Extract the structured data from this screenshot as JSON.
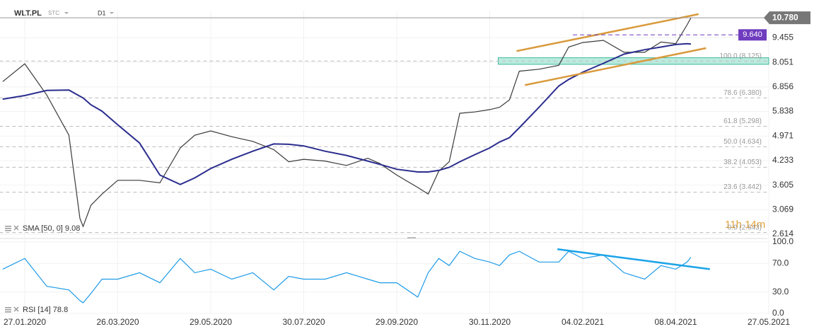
{
  "header": {
    "symbol": "WLT.PL",
    "mode": "STC",
    "interval": "D1",
    "countdown": "11h 14m"
  },
  "chart_data": [
    {
      "type": "line",
      "log": true,
      "grid": true,
      "legend": "SMA [50, 0] 9.08",
      "xlim": [
        "11.01.2020",
        "27.05.2021"
      ],
      "ylim": [
        2.566,
        11.3
      ],
      "yticks": [
        2.614,
        3.069,
        3.605,
        4.233,
        4.971,
        5.838,
        6.856,
        8.051,
        9.455
      ],
      "x": [
        "13.01.2020",
        "27.01.2020",
        "10.02.2020",
        "24.02.2020",
        "02.03.2020",
        "04.03.2020",
        "09.03.2020",
        "16.03.2020",
        "26.03.2020",
        "10.04.2020",
        "24.04.2020",
        "08.05.2020",
        "18.05.2020",
        "29.05.2020",
        "12.06.2020",
        "26.06.2020",
        "10.07.2020",
        "20.07.2020",
        "30.07.2020",
        "13.08.2020",
        "27.08.2020",
        "10.09.2020",
        "18.09.2020",
        "29.09.2020",
        "13.10.2020",
        "20.10.2020",
        "27.10.2020",
        "03.11.2020",
        "10.11.2020",
        "20.11.2020",
        "30.11.2020",
        "07.12.2020",
        "14.12.2020",
        "21.12.2020",
        "04.01.2021",
        "18.01.2021",
        "25.01.2021",
        "04.02.2021",
        "18.02.2021",
        "04.03.2021",
        "18.03.2021",
        "29.03.2021",
        "08.04.2021",
        "14.04.2021",
        "16.04.2021"
      ],
      "series": [
        {
          "color": "#3a3a3a",
          "width": 1.2,
          "values": [
            7.1,
            7.98,
            6.5,
            5.0,
            2.9,
            2.75,
            3.16,
            3.4,
            3.72,
            3.72,
            3.66,
            4.6,
            5.0,
            5.14,
            4.95,
            4.8,
            4.55,
            4.2,
            4.27,
            4.22,
            4.1,
            4.3,
            4.15,
            3.85,
            3.55,
            3.4,
            3.95,
            4.2,
            5.77,
            5.82,
            5.91,
            6.0,
            6.3,
            7.6,
            7.7,
            7.9,
            8.9,
            9.17,
            9.3,
            8.6,
            8.6,
            9.2,
            9.1,
            10.3,
            10.78
          ]
        },
        {
          "color": "#2b2d8e",
          "width": 2,
          "values": [
            6.33,
            6.48,
            6.7,
            6.72,
            6.45,
            6.38,
            6.1,
            5.85,
            5.35,
            4.75,
            3.85,
            3.62,
            3.78,
            4.02,
            4.27,
            4.5,
            4.72,
            4.71,
            4.66,
            4.5,
            4.38,
            4.22,
            4.13,
            4.0,
            3.93,
            3.93,
            3.97,
            4.05,
            4.2,
            4.4,
            4.6,
            4.78,
            4.92,
            5.25,
            6.0,
            6.9,
            7.2,
            7.55,
            8.0,
            8.5,
            8.75,
            8.9,
            9.05,
            9.1,
            9.08
          ]
        }
      ],
      "last": {
        "value": 10.78,
        "label": "10.780",
        "color": "#777777"
      },
      "levels": [
        {
          "value": 9.64,
          "label": "9.640",
          "x": [
            "28.01.2021",
            "11.05.2021"
          ],
          "color": "#6f3cbf"
        }
      ],
      "fib": [
        {
          "value": 8.125,
          "label": "100.0 (8.125)"
        },
        {
          "value": 6.38,
          "label": "78.6 (6.380)"
        },
        {
          "value": 5.298,
          "label": "61.8 (5.298)"
        },
        {
          "value": 4.634,
          "label": "50.0 (4.634)"
        },
        {
          "value": 4.053,
          "label": "38.2 (4.053)"
        },
        {
          "value": 3.442,
          "label": "23.6 (3.442)"
        },
        {
          "value": 2.643,
          "label": "0.0 (2.643)"
        }
      ],
      "zones": [
        {
          "x": "06.12.2020",
          "range": [
            7.95,
            8.3
          ],
          "color": "#8fe0c9"
        }
      ],
      "trendlines": [
        {
          "x": [
            "19.12.2020",
            "20.04.2021"
          ],
          "values": [
            8.67,
            11.04
          ],
          "color": "#d99a3c"
        },
        {
          "x": [
            "25.12.2020",
            "24.04.2021"
          ],
          "values": [
            6.94,
            8.84
          ],
          "color": "#d99a3c"
        }
      ]
    },
    {
      "type": "line",
      "grid": true,
      "legend": "RSI [14] 78.8",
      "xlim": [
        "11.01.2020",
        "27.05.2021"
      ],
      "ylim": [
        0,
        100
      ],
      "yticks": [
        {
          "value": 0,
          "label": "0.0"
        },
        {
          "value": 30,
          "label": "30.0"
        },
        {
          "value": 70,
          "label": "70.0"
        },
        {
          "value": 100,
          "label": "100.0"
        }
      ],
      "xticks": [
        "27.01.2020",
        "26.03.2020",
        "29.05.2020",
        "30.07.2020",
        "29.09.2020",
        "30.11.2020",
        "04.02.2021",
        "08.04.2021",
        "27.05.2021"
      ],
      "x": [
        "13.01.2020",
        "27.01.2020",
        "10.02.2020",
        "24.02.2020",
        "02.03.2020",
        "04.03.2020",
        "09.03.2020",
        "16.03.2020",
        "26.03.2020",
        "10.04.2020",
        "24.04.2020",
        "08.05.2020",
        "18.05.2020",
        "29.05.2020",
        "12.06.2020",
        "26.06.2020",
        "10.07.2020",
        "20.07.2020",
        "30.07.2020",
        "13.08.2020",
        "27.08.2020",
        "10.09.2020",
        "18.09.2020",
        "29.09.2020",
        "13.10.2020",
        "20.10.2020",
        "27.10.2020",
        "03.11.2020",
        "10.11.2020",
        "20.11.2020",
        "30.11.2020",
        "07.12.2020",
        "14.12.2020",
        "21.12.2020",
        "04.01.2021",
        "18.01.2021",
        "25.01.2021",
        "04.02.2021",
        "18.02.2021",
        "04.03.2021",
        "18.03.2021",
        "29.03.2021",
        "08.04.2021",
        "14.04.2021",
        "16.04.2021"
      ],
      "series": [
        {
          "color": "#1e9be8",
          "width": 1.2,
          "values": [
            62,
            77,
            38,
            33,
            18,
            15,
            28,
            48,
            48,
            57,
            43,
            77,
            57,
            62,
            48,
            57,
            33,
            52,
            48,
            48,
            57,
            48,
            43,
            43,
            23,
            57,
            77,
            67,
            87,
            77,
            72,
            67,
            82,
            87,
            72,
            72,
            87,
            77,
            82,
            57,
            48,
            67,
            62,
            72,
            78.8
          ]
        }
      ],
      "trendlines": [
        {
          "x": [
            "17.01.2021",
            "26.04.2021"
          ],
          "values": [
            90,
            62
          ],
          "color": "#1aa3e8"
        }
      ]
    }
  ]
}
